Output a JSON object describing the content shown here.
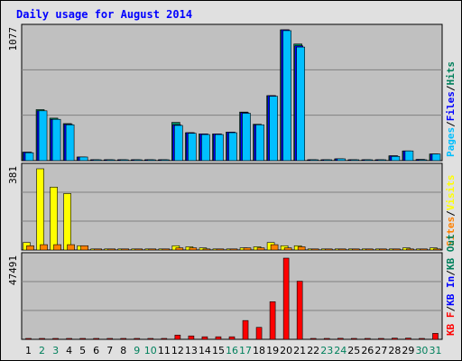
{
  "chart_data": [
    {
      "type": "bar",
      "title": "Daily usage for August 2014",
      "panel": "top",
      "ymax_label": "1077",
      "categories": [
        "1",
        "2",
        "3",
        "4",
        "5",
        "6",
        "7",
        "8",
        "9",
        "10",
        "11",
        "12",
        "13",
        "14",
        "15",
        "16",
        "17",
        "18",
        "19",
        "20",
        "21",
        "22",
        "23",
        "24",
        "25",
        "26",
        "27",
        "28",
        "29",
        "30",
        "31"
      ],
      "series": [
        {
          "name": "Hits",
          "color": "#00805c",
          "values": [
            70,
            420,
            350,
            305,
            30,
            5,
            5,
            5,
            5,
            5,
            5,
            315,
            230,
            220,
            220,
            235,
            400,
            300,
            535,
            1077,
            960,
            5,
            5,
            15,
            5,
            5,
            5,
            40,
            80,
            10,
            55
          ]
        },
        {
          "name": "Files",
          "color": "#0000ff",
          "values": [
            70,
            410,
            340,
            300,
            30,
            5,
            5,
            5,
            5,
            5,
            5,
            295,
            230,
            220,
            220,
            235,
            395,
            295,
            535,
            1077,
            945,
            5,
            5,
            15,
            5,
            5,
            5,
            40,
            80,
            10,
            55
          ]
        },
        {
          "name": "Pages",
          "color": "#00bfff",
          "values": [
            65,
            410,
            340,
            295,
            30,
            5,
            5,
            5,
            5,
            5,
            5,
            290,
            225,
            215,
            215,
            230,
            390,
            295,
            530,
            1070,
            935,
            5,
            5,
            15,
            5,
            5,
            5,
            35,
            80,
            5,
            55
          ]
        }
      ],
      "legend_text_order": [
        "Pages",
        "/",
        "Files",
        "/",
        "Hits"
      ],
      "legend_placement": "right, vertical"
    },
    {
      "type": "bar",
      "panel": "middle",
      "ymax_label": "381",
      "categories": [
        "1",
        "2",
        "3",
        "4",
        "5",
        "6",
        "7",
        "8",
        "9",
        "10",
        "11",
        "12",
        "13",
        "14",
        "15",
        "16",
        "17",
        "18",
        "19",
        "20",
        "21",
        "22",
        "23",
        "24",
        "25",
        "26",
        "27",
        "28",
        "29",
        "30",
        "31"
      ],
      "series": [
        {
          "name": "Visits",
          "color": "#ffff00",
          "values": [
            35,
            381,
            295,
            265,
            20,
            5,
            5,
            5,
            5,
            5,
            5,
            20,
            15,
            10,
            5,
            5,
            10,
            15,
            35,
            20,
            20,
            5,
            5,
            5,
            5,
            5,
            5,
            5,
            10,
            5,
            10
          ]
        },
        {
          "name": "Sites",
          "color": "#ff8000",
          "values": [
            20,
            25,
            25,
            25,
            20,
            5,
            5,
            5,
            5,
            5,
            5,
            10,
            10,
            5,
            5,
            5,
            10,
            10,
            25,
            10,
            15,
            5,
            5,
            5,
            5,
            5,
            5,
            5,
            5,
            5,
            5
          ]
        }
      ],
      "legend_text_order": [
        "Sites",
        "/",
        "Visits"
      ],
      "legend_placement": "right, vertical"
    },
    {
      "type": "bar",
      "panel": "bottom",
      "ymax_label": "47491",
      "categories": [
        "1",
        "2",
        "3",
        "4",
        "5",
        "6",
        "7",
        "8",
        "9",
        "10",
        "11",
        "12",
        "13",
        "14",
        "15",
        "16",
        "17",
        "18",
        "19",
        "20",
        "21",
        "22",
        "23",
        "24",
        "25",
        "26",
        "27",
        "28",
        "29",
        "30",
        "31"
      ],
      "series": [
        {
          "name": "KB F",
          "color": "#ff0000",
          "values": [
            400,
            400,
            400,
            400,
            400,
            400,
            400,
            400,
            400,
            400,
            400,
            2500,
            2000,
            1500,
            1500,
            1500,
            11000,
            7000,
            22000,
            47491,
            34000,
            400,
            400,
            600,
            400,
            400,
            400,
            700,
            700,
            400,
            3500
          ]
        }
      ],
      "legend_text_order": [
        "KB F",
        "/",
        "KB In",
        "/",
        "KB Out"
      ],
      "legend_colors": {
        "KB F": "#ff0000",
        "KB In": "#0000ff",
        "KB Out": "#00805c"
      },
      "legend_placement": "right, vertical"
    }
  ],
  "x_axis": {
    "labels": [
      "1",
      "2",
      "3",
      "4",
      "5",
      "6",
      "7",
      "8",
      "9",
      "10",
      "11",
      "12",
      "13",
      "14",
      "15",
      "16",
      "17",
      "18",
      "19",
      "20",
      "21",
      "22",
      "23",
      "24",
      "25",
      "26",
      "27",
      "28",
      "29",
      "30",
      "31"
    ],
    "weekend_days": [
      "2",
      "3",
      "9",
      "10",
      "16",
      "17",
      "23",
      "24",
      "30",
      "31"
    ],
    "weekday_color": "#000000",
    "weekend_color": "#00805c"
  },
  "colors": {
    "panel_bg": "#c0c0c0",
    "page_bg": "#e0e0e0",
    "grid": "#808080",
    "title": "#0000ff"
  }
}
